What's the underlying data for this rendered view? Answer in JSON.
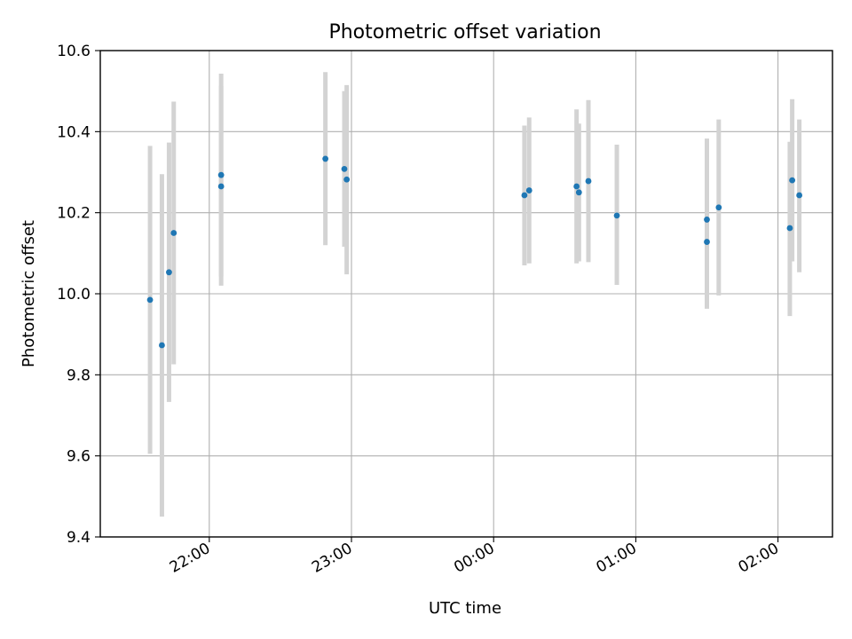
{
  "chart_data": {
    "type": "scatter",
    "title": "Photometric offset variation",
    "xlabel": "UTC time",
    "ylabel": "Photometric offset",
    "x_tick_labels": [
      "22:00",
      "23:00",
      "00:00",
      "01:00",
      "02:00"
    ],
    "y_tick_labels": [
      "9.4",
      "9.6",
      "9.8",
      "10.0",
      "10.2",
      "10.4",
      "10.6"
    ],
    "ylim": [
      9.4,
      10.6
    ],
    "xlim": [
      "21:14",
      "02:23"
    ],
    "grid": true,
    "series": [
      {
        "marker_color": "#1f77b4",
        "errorbar_color": "#d3d3d3",
        "points": [
          {
            "x": "21:35",
            "y": 9.985,
            "ylow": 9.605,
            "yhigh": 10.365
          },
          {
            "x": "21:40",
            "y": 9.873,
            "ylow": 9.45,
            "yhigh": 10.295
          },
          {
            "x": "21:43",
            "y": 10.053,
            "ylow": 9.733,
            "yhigh": 10.373
          },
          {
            "x": "21:45",
            "y": 10.15,
            "ylow": 9.826,
            "yhigh": 10.474
          },
          {
            "x": "22:05",
            "y": 10.293,
            "ylow": 10.043,
            "yhigh": 10.543
          },
          {
            "x": "22:05",
            "y": 10.265,
            "ylow": 10.02,
            "yhigh": 10.513
          },
          {
            "x": "22:49",
            "y": 10.333,
            "ylow": 10.12,
            "yhigh": 10.547
          },
          {
            "x": "22:57",
            "y": 10.308,
            "ylow": 10.116,
            "yhigh": 10.5
          },
          {
            "x": "22:58",
            "y": 10.282,
            "ylow": 10.048,
            "yhigh": 10.515
          },
          {
            "x": "00:13",
            "y": 10.243,
            "ylow": 10.07,
            "yhigh": 10.415
          },
          {
            "x": "00:15",
            "y": 10.255,
            "ylow": 10.075,
            "yhigh": 10.435
          },
          {
            "x": "00:35",
            "y": 10.265,
            "ylow": 10.075,
            "yhigh": 10.455
          },
          {
            "x": "00:36",
            "y": 10.25,
            "ylow": 10.08,
            "yhigh": 10.42
          },
          {
            "x": "00:40",
            "y": 10.278,
            "ylow": 10.078,
            "yhigh": 10.478
          },
          {
            "x": "00:52",
            "y": 10.193,
            "ylow": 10.022,
            "yhigh": 10.368
          },
          {
            "x": "01:30",
            "y": 10.183,
            "ylow": 9.983,
            "yhigh": 10.383
          },
          {
            "x": "01:30",
            "y": 10.128,
            "ylow": 9.963,
            "yhigh": 10.293
          },
          {
            "x": "01:35",
            "y": 10.213,
            "ylow": 9.996,
            "yhigh": 10.43
          },
          {
            "x": "02:05",
            "y": 10.162,
            "ylow": 9.945,
            "yhigh": 10.375
          },
          {
            "x": "02:06",
            "y": 10.28,
            "ylow": 10.08,
            "yhigh": 10.48
          },
          {
            "x": "02:09",
            "y": 10.243,
            "ylow": 10.053,
            "yhigh": 10.43
          }
        ]
      }
    ]
  }
}
